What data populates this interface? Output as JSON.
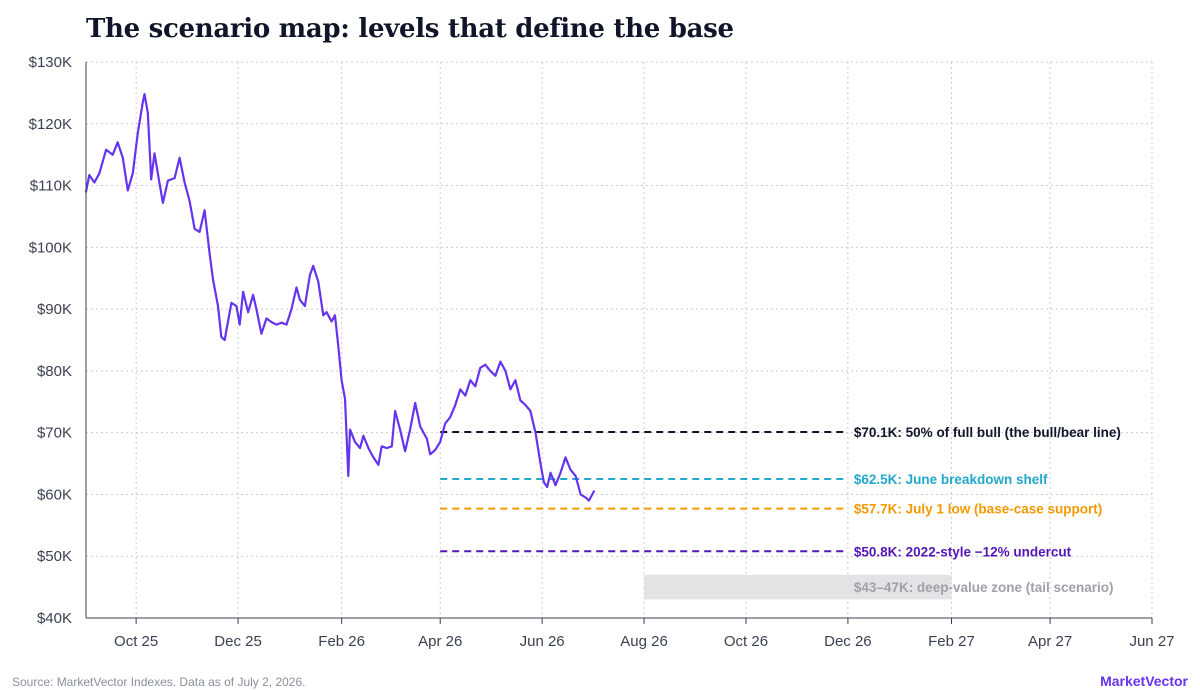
{
  "title": "The scenario map: levels that define the base",
  "footer": {
    "source": "Source: MarketVector Indexes. Data as of July 2, 2026.",
    "brand": "MarketVector"
  },
  "chart_data": {
    "type": "line",
    "ylim": [
      40000,
      130000
    ],
    "xlim": [
      "2025-09-01",
      "2027-06-01"
    ],
    "yticks": [
      40000,
      50000,
      60000,
      70000,
      80000,
      90000,
      100000,
      110000,
      120000,
      130000
    ],
    "ytick_labels": [
      "$40K",
      "$50K",
      "$60K",
      "$70K",
      "$80K",
      "$90K",
      "$100K",
      "$110K",
      "$120K",
      "$130K"
    ],
    "xticks": [
      "2025-10-01",
      "2025-12-01",
      "2026-02-01",
      "2026-04-01",
      "2026-06-01",
      "2026-08-01",
      "2026-10-01",
      "2026-12-01",
      "2027-02-01",
      "2027-04-01",
      "2027-06-01"
    ],
    "xtick_labels": [
      "Oct 25",
      "Dec 25",
      "Feb 26",
      "Apr 26",
      "Jun 26",
      "Aug 26",
      "Oct 26",
      "Dec 26",
      "Feb 27",
      "Apr 27",
      "Jun 27"
    ],
    "grid": true,
    "colors": {
      "line": "#6633ee",
      "axis": "#3b4152",
      "grid": "#c9ccd3"
    },
    "series": [
      {
        "color": "#6633ee",
        "points": [
          [
            "2025-09-01",
            109000
          ],
          [
            "2025-09-03",
            111700
          ],
          [
            "2025-09-06",
            110500
          ],
          [
            "2025-09-09",
            112000
          ],
          [
            "2025-09-13",
            115800
          ],
          [
            "2025-09-17",
            115000
          ],
          [
            "2025-09-20",
            117000
          ],
          [
            "2025-09-23",
            114500
          ],
          [
            "2025-09-26",
            109200
          ],
          [
            "2025-09-29",
            112000
          ],
          [
            "2025-10-02",
            118500
          ],
          [
            "2025-10-05",
            123500
          ],
          [
            "2025-10-06",
            124800
          ],
          [
            "2025-10-08",
            121800
          ],
          [
            "2025-10-10",
            111000
          ],
          [
            "2025-10-12",
            115200
          ],
          [
            "2025-10-14",
            112000
          ],
          [
            "2025-10-17",
            107200
          ],
          [
            "2025-10-20",
            110800
          ],
          [
            "2025-10-24",
            111200
          ],
          [
            "2025-10-27",
            114500
          ],
          [
            "2025-10-30",
            110500
          ],
          [
            "2025-11-02",
            107500
          ],
          [
            "2025-11-05",
            103000
          ],
          [
            "2025-11-08",
            102500
          ],
          [
            "2025-11-11",
            106000
          ],
          [
            "2025-11-14",
            99000
          ],
          [
            "2025-11-16",
            94800
          ],
          [
            "2025-11-19",
            90500
          ],
          [
            "2025-11-21",
            85500
          ],
          [
            "2025-11-23",
            85000
          ],
          [
            "2025-11-25",
            88000
          ],
          [
            "2025-11-27",
            91000
          ],
          [
            "2025-11-30",
            90500
          ],
          [
            "2025-12-02",
            87500
          ],
          [
            "2025-12-04",
            92800
          ],
          [
            "2025-12-07",
            89500
          ],
          [
            "2025-12-10",
            92300
          ],
          [
            "2025-12-12",
            90000
          ],
          [
            "2025-12-15",
            86000
          ],
          [
            "2025-12-18",
            88500
          ],
          [
            "2025-12-21",
            87900
          ],
          [
            "2025-12-24",
            87500
          ],
          [
            "2025-12-27",
            87800
          ],
          [
            "2025-12-30",
            87500
          ],
          [
            "2026-01-02",
            90000
          ],
          [
            "2026-01-05",
            93500
          ],
          [
            "2026-01-07",
            91500
          ],
          [
            "2026-01-10",
            90500
          ],
          [
            "2026-01-13",
            95500
          ],
          [
            "2026-01-15",
            97000
          ],
          [
            "2026-01-18",
            94500
          ],
          [
            "2026-01-21",
            89000
          ],
          [
            "2026-01-23",
            89500
          ],
          [
            "2026-01-26",
            88000
          ],
          [
            "2026-01-28",
            89000
          ],
          [
            "2026-01-30",
            84000
          ],
          [
            "2026-02-01",
            78500
          ],
          [
            "2026-02-03",
            75500
          ],
          [
            "2026-02-05",
            63000
          ],
          [
            "2026-02-06",
            70500
          ],
          [
            "2026-02-09",
            68500
          ],
          [
            "2026-02-12",
            67500
          ],
          [
            "2026-02-14",
            69500
          ],
          [
            "2026-02-17",
            67500
          ],
          [
            "2026-02-20",
            66000
          ],
          [
            "2026-02-23",
            64800
          ],
          [
            "2026-02-25",
            67800
          ],
          [
            "2026-02-28",
            67500
          ],
          [
            "2026-03-03",
            67800
          ],
          [
            "2026-03-05",
            73500
          ],
          [
            "2026-03-08",
            70500
          ],
          [
            "2026-03-11",
            67000
          ],
          [
            "2026-03-14",
            70500
          ],
          [
            "2026-03-17",
            74800
          ],
          [
            "2026-03-20",
            71000
          ],
          [
            "2026-03-24",
            69000
          ],
          [
            "2026-03-26",
            66500
          ],
          [
            "2026-03-29",
            67200
          ],
          [
            "2026-04-01",
            68500
          ],
          [
            "2026-04-04",
            71500
          ],
          [
            "2026-04-07",
            72500
          ],
          [
            "2026-04-10",
            74500
          ],
          [
            "2026-04-13",
            77000
          ],
          [
            "2026-04-16",
            76000
          ],
          [
            "2026-04-19",
            78500
          ],
          [
            "2026-04-22",
            77500
          ],
          [
            "2026-04-25",
            80500
          ],
          [
            "2026-04-28",
            81000
          ],
          [
            "2026-05-01",
            80000
          ],
          [
            "2026-05-04",
            79200
          ],
          [
            "2026-05-07",
            81500
          ],
          [
            "2026-05-10",
            80000
          ],
          [
            "2026-05-13",
            77000
          ],
          [
            "2026-05-16",
            78500
          ],
          [
            "2026-05-19",
            75200
          ],
          [
            "2026-05-22",
            74500
          ],
          [
            "2026-05-25",
            73500
          ],
          [
            "2026-05-28",
            70000
          ],
          [
            "2026-05-31",
            65000
          ],
          [
            "2026-06-02",
            62000
          ],
          [
            "2026-06-04",
            61200
          ],
          [
            "2026-06-06",
            63500
          ],
          [
            "2026-06-09",
            61500
          ],
          [
            "2026-06-12",
            63500
          ],
          [
            "2026-06-15",
            66000
          ],
          [
            "2026-06-18",
            64000
          ],
          [
            "2026-06-21",
            63000
          ],
          [
            "2026-06-24",
            60000
          ],
          [
            "2026-06-27",
            59500
          ],
          [
            "2026-06-29",
            59000
          ],
          [
            "2026-07-02",
            60500
          ]
        ]
      }
    ],
    "levels": [
      {
        "value": 70100,
        "label": "$70.1K: 50% of full bull (the bull/bear line)",
        "color": "#101529",
        "x_start": "2026-04-01",
        "x_end": "2026-12-01"
      },
      {
        "value": 62500,
        "label": "$62.5K: June breakdown shelf",
        "color": "#22a8cc",
        "x_start": "2026-04-01",
        "x_end": "2026-12-01"
      },
      {
        "value": 57700,
        "label": "$57.7K: July 1 low (base-case support)",
        "color": "#f29a00",
        "x_start": "2026-04-01",
        "x_end": "2026-12-01"
      },
      {
        "value": 50800,
        "label": "$50.8K: 2022-style −12% undercut",
        "color": "#5516b8",
        "x_start": "2026-04-01",
        "x_end": "2026-12-01"
      }
    ],
    "zone": {
      "y_from": 43000,
      "y_to": 47000,
      "label": "$43–47K: deep-value zone (tail scenario)",
      "color": "#e3e3e5",
      "label_color": "#9ea1a8",
      "x_start": "2026-08-01",
      "x_end": "2027-02-01"
    }
  }
}
